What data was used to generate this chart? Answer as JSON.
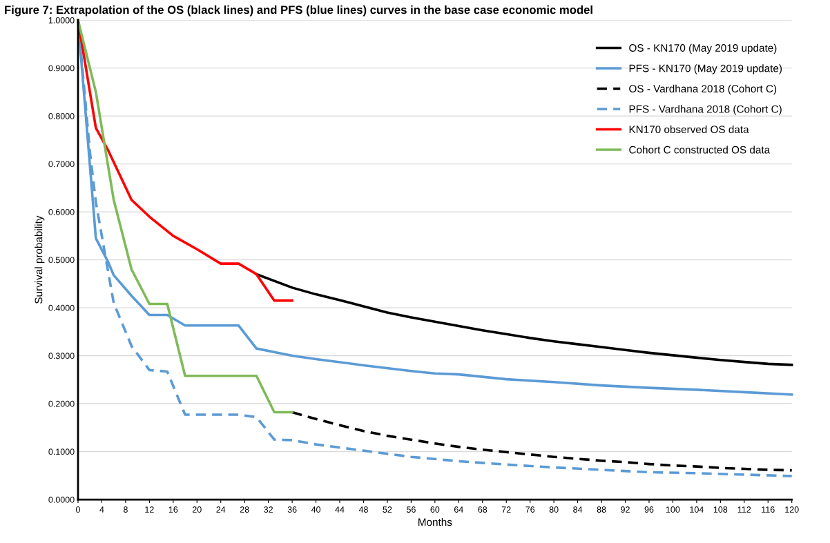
{
  "chart_data": {
    "type": "line",
    "title": "Figure 7: Extrapolation of the OS (black lines) and PFS (blue lines) curves in the base case economic model",
    "xlabel": "Months",
    "ylabel": "Survival probability",
    "xlim": [
      0,
      120
    ],
    "xticks": [
      0,
      4,
      8,
      12,
      16,
      20,
      24,
      28,
      32,
      36,
      40,
      44,
      48,
      52,
      56,
      60,
      64,
      68,
      72,
      76,
      80,
      84,
      88,
      92,
      96,
      100,
      104,
      108,
      112,
      116,
      120
    ],
    "ylim": [
      0,
      1
    ],
    "yticks": [
      {
        "value": 0,
        "label": "0.0000"
      },
      {
        "value": 0.1,
        "label": "0.1000"
      },
      {
        "value": 0.2,
        "label": "0.2000"
      },
      {
        "value": 0.3,
        "label": "0.3000"
      },
      {
        "value": 0.4,
        "label": "0.4000"
      },
      {
        "value": 0.5,
        "label": "0.5000"
      },
      {
        "value": 0.6,
        "label": "0.6000"
      },
      {
        "value": 0.7,
        "label": "0.7000"
      },
      {
        "value": 0.8,
        "label": "0.8000"
      },
      {
        "value": 0.9,
        "label": "0.9000"
      },
      {
        "value": 1,
        "label": "1.0000"
      }
    ],
    "grid": "y",
    "legend": "top right",
    "marker": "none",
    "series": [
      {
        "name": "OS - KN170 (May 2019 update)",
        "color": "#000000",
        "line_style": "solid",
        "x": [
          30,
          36,
          40,
          44,
          48,
          52,
          56,
          60,
          64,
          68,
          72,
          76,
          80,
          84,
          88,
          92,
          96,
          100,
          104,
          108,
          112,
          116,
          120
        ],
        "values": [
          0.47,
          0.442,
          0.428,
          0.416,
          0.403,
          0.39,
          0.38,
          0.371,
          0.362,
          0.353,
          0.345,
          0.337,
          0.33,
          0.324,
          0.318,
          0.312,
          0.306,
          0.301,
          0.296,
          0.291,
          0.287,
          0.283,
          0.281
        ]
      },
      {
        "name": "PFS - KN170 (May 2019 update)",
        "color": "#5b9bd5",
        "line_style": "solid",
        "x": [
          0,
          3,
          5,
          6,
          9,
          12,
          15,
          18,
          27,
          30,
          36,
          40,
          48,
          56,
          60,
          64,
          72,
          80,
          88,
          96,
          104,
          112,
          120
        ],
        "values": [
          1.0,
          0.545,
          0.497,
          0.468,
          0.425,
          0.385,
          0.385,
          0.363,
          0.363,
          0.315,
          0.3,
          0.293,
          0.28,
          0.268,
          0.263,
          0.261,
          0.251,
          0.245,
          0.238,
          0.233,
          0.229,
          0.224,
          0.219
        ]
      },
      {
        "name": "OS - Vardhana 2018 (Cohort C)",
        "color": "#000000",
        "line_style": "dashed",
        "x": [
          36,
          40,
          44,
          48,
          52,
          56,
          60,
          64,
          68,
          72,
          76,
          80,
          84,
          88,
          92,
          96,
          100,
          104,
          108,
          112,
          116,
          120
        ],
        "values": [
          0.182,
          0.168,
          0.155,
          0.143,
          0.133,
          0.125,
          0.117,
          0.11,
          0.104,
          0.099,
          0.094,
          0.089,
          0.085,
          0.081,
          0.078,
          0.074,
          0.071,
          0.069,
          0.066,
          0.064,
          0.062,
          0.061
        ]
      },
      {
        "name": "PFS - Vardhana 2018 (Cohort C)",
        "color": "#5b9bd5",
        "line_style": "dashed",
        "x": [
          0,
          2,
          3,
          5,
          6,
          9,
          12,
          15,
          18,
          27,
          30,
          33,
          36,
          40,
          48,
          56,
          64,
          72,
          80,
          88,
          96,
          104,
          112,
          120
        ],
        "values": [
          1.0,
          0.725,
          0.62,
          0.48,
          0.41,
          0.32,
          0.27,
          0.267,
          0.177,
          0.177,
          0.172,
          0.125,
          0.124,
          0.115,
          0.102,
          0.089,
          0.08,
          0.073,
          0.067,
          0.062,
          0.057,
          0.055,
          0.052,
          0.049
        ]
      },
      {
        "name": "KN170 observed OS data",
        "color": "#ff0000",
        "line_style": "solid",
        "x": [
          0,
          3,
          5,
          9,
          12,
          16,
          20,
          24,
          27,
          30,
          33,
          36
        ],
        "values": [
          1.0,
          0.775,
          0.73,
          0.625,
          0.59,
          0.55,
          0.522,
          0.492,
          0.492,
          0.47,
          0.415,
          0.415
        ]
      },
      {
        "name": "Cohort C constructed OS data",
        "color": "#7fba59",
        "line_style": "solid",
        "x": [
          0,
          3,
          6,
          9,
          12,
          15,
          18,
          30,
          33,
          36
        ],
        "values": [
          1.0,
          0.85,
          0.625,
          0.48,
          0.408,
          0.408,
          0.258,
          0.258,
          0.182,
          0.182
        ]
      }
    ]
  }
}
